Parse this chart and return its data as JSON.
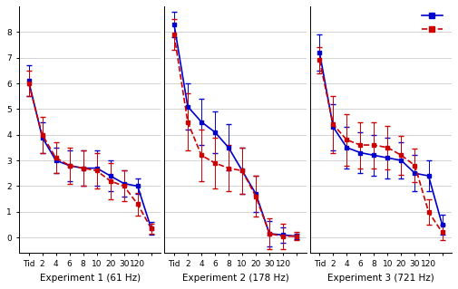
{
  "x_vals": [
    1,
    2,
    3,
    4,
    5,
    6,
    7,
    8,
    9,
    10
  ],
  "x_labels": [
    "Tid",
    "2",
    "4",
    "6",
    "8",
    "10",
    "20",
    "30",
    "120",
    ""
  ],
  "exp1": {
    "blue_y": [
      6.1,
      3.9,
      3.0,
      2.8,
      2.7,
      2.7,
      2.4,
      2.1,
      2.0,
      0.35
    ],
    "blue_yerr": [
      0.6,
      0.6,
      0.5,
      0.6,
      0.7,
      0.7,
      0.6,
      0.5,
      0.3,
      0.25
    ],
    "red_y": [
      6.0,
      4.0,
      3.1,
      2.8,
      2.7,
      2.6,
      2.2,
      2.0,
      1.3,
      0.35
    ],
    "red_yerr": [
      0.5,
      0.7,
      0.6,
      0.7,
      0.7,
      0.7,
      0.7,
      0.6,
      0.45,
      0.2
    ]
  },
  "exp2": {
    "blue_y": [
      8.3,
      5.1,
      4.5,
      4.1,
      3.5,
      2.6,
      1.7,
      0.15,
      0.1,
      0.05
    ],
    "blue_yerr": [
      0.5,
      0.9,
      0.9,
      0.8,
      0.9,
      0.9,
      0.7,
      0.5,
      0.3,
      0.1
    ],
    "red_y": [
      7.9,
      4.5,
      3.2,
      2.9,
      2.7,
      2.6,
      1.6,
      0.15,
      0.05,
      0.05
    ],
    "red_yerr": [
      0.6,
      1.1,
      1.0,
      1.0,
      0.9,
      0.9,
      0.8,
      0.6,
      0.5,
      0.15
    ]
  },
  "exp3": {
    "blue_y": [
      7.2,
      4.3,
      3.5,
      3.3,
      3.2,
      3.1,
      3.0,
      2.5,
      2.4,
      0.5
    ],
    "blue_yerr": [
      0.7,
      0.9,
      0.8,
      0.8,
      0.8,
      0.8,
      0.7,
      0.7,
      0.6,
      0.4
    ],
    "red_y": [
      6.9,
      4.4,
      3.8,
      3.6,
      3.6,
      3.5,
      3.2,
      2.8,
      1.0,
      0.2
    ],
    "red_yerr": [
      0.5,
      1.1,
      1.0,
      0.9,
      0.9,
      0.85,
      0.75,
      0.65,
      0.5,
      0.3
    ]
  },
  "blue_color": "#0000cc",
  "red_color": "#cc0000",
  "titles": [
    "Experiment 1 (61 Hz)",
    "Experiment 2 (178 Hz)",
    "Experiment 3 (721 Hz)"
  ],
  "ylim": [
    -0.6,
    9.0
  ],
  "yticks": [
    0,
    1,
    2,
    3,
    4,
    5,
    6,
    7,
    8
  ],
  "ms": 3.0,
  "lw": 1.2,
  "capsize": 2,
  "elinewidth": 0.7
}
